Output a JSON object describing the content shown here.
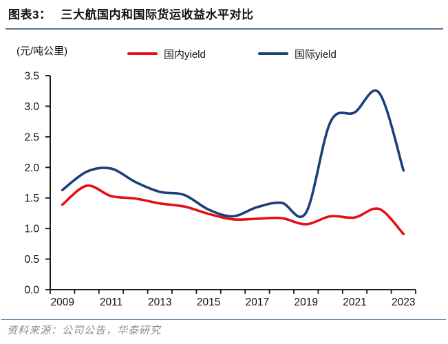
{
  "header": {
    "figure_label": "图表3：",
    "title": "三大航国内和国际货运收益水平对比"
  },
  "chart": {
    "unit_label": "(元/吨公里)",
    "legend": [
      {
        "label": "国内yield",
        "color": "#e60f13"
      },
      {
        "label": "国际yield",
        "color": "#1b3f7c"
      }
    ]
  },
  "chart_data": {
    "type": "line",
    "title": "三大航国内和国际货运收益水平对比",
    "ylabel": "(元/吨公里)",
    "x": [
      2009,
      2010,
      2011,
      2012,
      2013,
      2014,
      2015,
      2016,
      2017,
      2018,
      2019,
      2020,
      2021,
      2022,
      2023
    ],
    "series": [
      {
        "name": "国内yield",
        "color": "#e60f13",
        "values": [
          1.39,
          1.7,
          1.53,
          1.49,
          1.41,
          1.36,
          1.24,
          1.15,
          1.16,
          1.17,
          1.07,
          1.2,
          1.18,
          1.32,
          0.91
        ]
      },
      {
        "name": "国际yield",
        "color": "#1b3f7c",
        "values": [
          1.63,
          1.93,
          1.98,
          1.76,
          1.6,
          1.55,
          1.31,
          1.2,
          1.35,
          1.42,
          1.26,
          2.74,
          2.9,
          3.22,
          1.95
        ]
      }
    ],
    "ylim": [
      0,
      3.5
    ],
    "ytick_step": 0.5,
    "xtick_labels": [
      "2009",
      "2011",
      "2013",
      "2015",
      "2017",
      "2019",
      "2021",
      "2023"
    ],
    "grid": false,
    "legend_position": "top",
    "axis_color": "#1c1c1c",
    "line_width": 3.6
  },
  "footer": {
    "source": "资料来源：公司公告，华泰研究"
  }
}
